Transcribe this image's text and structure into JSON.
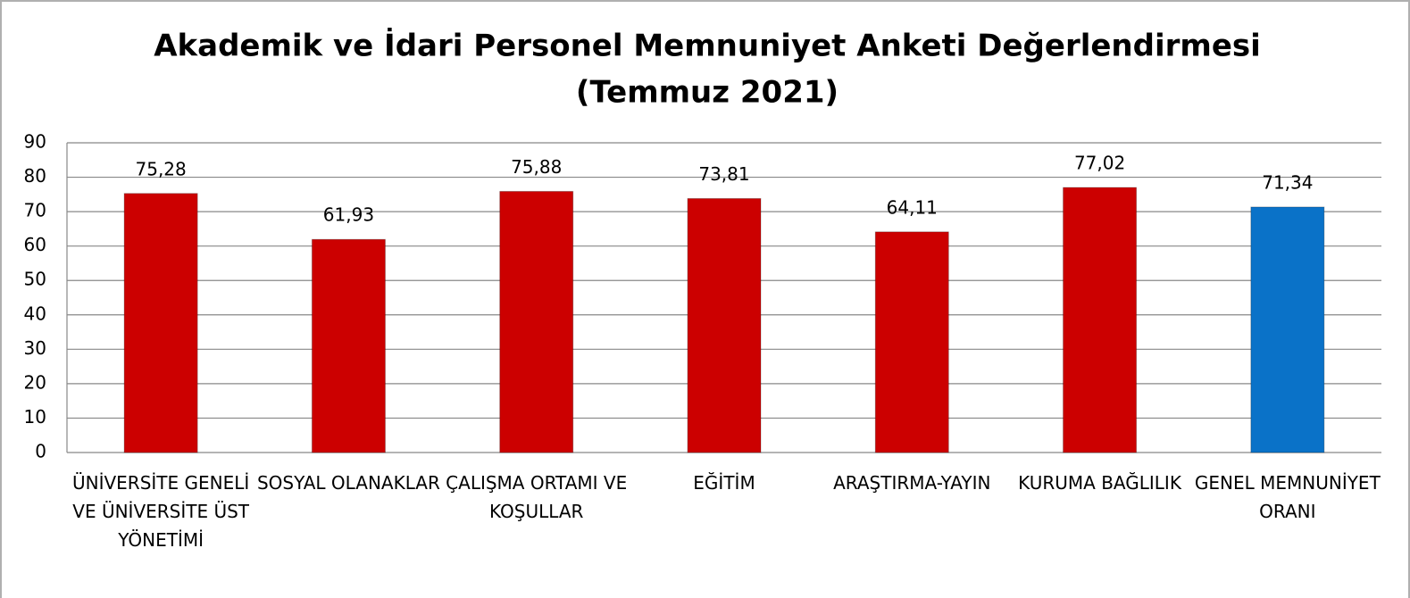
{
  "chart_data": {
    "type": "bar",
    "title": "Akademik ve İdari Personel Memnuniyet Anketi Değerlendirmesi",
    "subtitle": "(Temmuz 2021)",
    "categories": [
      "ÜNİVERSİTE GENELİ VE ÜNİVERSİTE ÜST YÖNETİMİ",
      "SOSYAL OLANAKLAR",
      "ÇALIŞMA ORTAMI VE KOŞULLAR",
      "EĞİTİM",
      "ARAŞTIRMA-YAYIN",
      "KURUMA BAĞLILIK",
      "GENEL MEMNUNİYET ORANI"
    ],
    "values": [
      75.28,
      61.93,
      75.88,
      73.81,
      64.11,
      77.02,
      71.34
    ],
    "value_labels": [
      "75,28",
      "61,93",
      "75,88",
      "73,81",
      "64,11",
      "77,02",
      "71,34"
    ],
    "colors": [
      "#cc0000",
      "#cc0000",
      "#cc0000",
      "#cc0000",
      "#cc0000",
      "#cc0000",
      "#0a72c8"
    ],
    "ylim": [
      0,
      90
    ],
    "yticks": [
      0,
      10,
      20,
      30,
      40,
      50,
      60,
      70,
      80,
      90
    ],
    "grid": true
  }
}
